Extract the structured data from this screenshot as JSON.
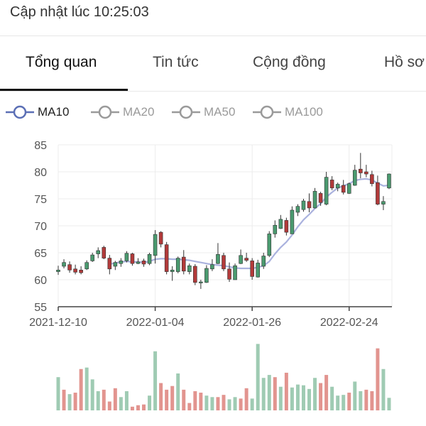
{
  "header": {
    "update_text": "Cập nhật lúc 10:25:03"
  },
  "tabs": [
    {
      "label": "Tổng quan"
    },
    {
      "label": "Tin tức"
    },
    {
      "label": "Cộng đồng"
    },
    {
      "label": "Hồ sơ"
    }
  ],
  "ma_legend": [
    {
      "label": "MA10",
      "active": true,
      "color": "#5b6fb5"
    },
    {
      "label": "MA20",
      "active": false,
      "color": "#9a9a9a"
    },
    {
      "label": "MA50",
      "active": false,
      "color": "#9a9a9a"
    },
    {
      "label": "MA100",
      "active": false,
      "color": "#9a9a9a"
    }
  ],
  "colors": {
    "up": "#4a9a6f",
    "down": "#b23a3a",
    "volume_up": "#9fcbb3",
    "volume_down": "#e2948f",
    "ma10": "#aab2de"
  },
  "chart_data": {
    "type": "candlestick",
    "ylim": [
      55,
      85
    ],
    "y_ticks": [
      "85",
      "80",
      "75",
      "70",
      "65",
      "60",
      "55"
    ],
    "x_ticks": [
      {
        "label": "2021-12-10",
        "index": 0
      },
      {
        "label": "2022-01-04",
        "index": 17
      },
      {
        "label": "2022-01-26",
        "index": 34
      },
      {
        "label": "2022-02-24",
        "index": 51
      }
    ],
    "candles": [
      [
        61.5,
        62.6,
        60.9,
        61.8
      ],
      [
        62.5,
        63.8,
        62.1,
        63.2
      ],
      [
        62.8,
        63.4,
        61.3,
        61.8
      ],
      [
        62.0,
        62.8,
        61.0,
        61.4
      ],
      [
        61.8,
        62.5,
        61.0,
        61.3
      ],
      [
        62.0,
        63.6,
        61.8,
        63.2
      ],
      [
        63.5,
        65.0,
        63.3,
        64.6
      ],
      [
        64.8,
        66.0,
        64.0,
        65.4
      ],
      [
        66.0,
        66.3,
        63.8,
        64.0
      ],
      [
        64.0,
        64.6,
        61.0,
        62.0
      ],
      [
        62.5,
        63.5,
        61.8,
        63.2
      ],
      [
        63.0,
        64.0,
        62.4,
        63.5
      ],
      [
        63.5,
        65.3,
        63.2,
        64.9
      ],
      [
        64.8,
        65.0,
        62.6,
        63.0
      ],
      [
        63.0,
        64.0,
        62.9,
        63.3
      ],
      [
        63.5,
        63.9,
        62.4,
        62.9
      ],
      [
        63.0,
        65.0,
        62.7,
        64.7
      ],
      [
        64.5,
        69.2,
        63.0,
        68.4
      ],
      [
        68.8,
        69.0,
        66.0,
        66.6
      ],
      [
        66.5,
        67.0,
        61.0,
        61.5
      ],
      [
        61.5,
        62.5,
        59.8,
        61.8
      ],
      [
        61.5,
        64.3,
        61.2,
        64.0
      ],
      [
        64.2,
        65.5,
        61.0,
        61.6
      ],
      [
        61.5,
        63.0,
        61.0,
        62.6
      ],
      [
        62.5,
        62.9,
        59.0,
        59.5
      ],
      [
        59.5,
        60.0,
        58.3,
        59.6
      ],
      [
        59.5,
        62.7,
        59.4,
        62.1
      ],
      [
        62.0,
        63.8,
        61.6,
        62.8
      ],
      [
        63.0,
        66.8,
        62.9,
        64.7
      ],
      [
        64.5,
        65.0,
        61.6,
        62.0
      ],
      [
        62.0,
        63.2,
        59.6,
        60.1
      ],
      [
        60.0,
        63.0,
        60.0,
        62.6
      ],
      [
        63.0,
        65.6,
        62.9,
        64.5
      ],
      [
        64.0,
        65.0,
        63.3,
        63.6
      ],
      [
        63.5,
        64.0,
        60.0,
        60.6
      ],
      [
        60.5,
        63.7,
        60.4,
        63.1
      ],
      [
        62.5,
        65.0,
        62.0,
        64.4
      ],
      [
        64.5,
        69.0,
        64.2,
        68.5
      ],
      [
        68.5,
        71.0,
        67.8,
        70.1
      ],
      [
        69.5,
        72.0,
        69.4,
        71.2
      ],
      [
        71.0,
        71.5,
        68.2,
        68.8
      ],
      [
        68.5,
        73.6,
        68.5,
        72.9
      ],
      [
        72.5,
        74.0,
        71.8,
        73.6
      ],
      [
        73.0,
        75.0,
        72.6,
        74.6
      ],
      [
        74.5,
        76.0,
        72.5,
        73.3
      ],
      [
        73.3,
        77.0,
        73.2,
        76.4
      ],
      [
        76.0,
        76.3,
        73.7,
        74.3
      ],
      [
        74.0,
        80.0,
        73.8,
        79.0
      ],
      [
        78.5,
        79.2,
        76.6,
        77.0
      ],
      [
        77.0,
        78.0,
        76.4,
        77.7
      ],
      [
        77.5,
        78.5,
        75.8,
        76.2
      ],
      [
        76.0,
        78.0,
        75.9,
        77.8
      ],
      [
        77.5,
        81.3,
        77.4,
        80.3
      ],
      [
        80.5,
        83.5,
        78.8,
        79.8
      ],
      [
        80.0,
        81.3,
        79.0,
        79.6
      ],
      [
        79.5,
        80.2,
        77.3,
        77.8
      ],
      [
        78.0,
        79.3,
        73.8,
        74.0
      ],
      [
        74.0,
        75.5,
        72.9,
        74.5
      ],
      [
        77.0,
        79.7,
        76.8,
        79.6
      ]
    ],
    "ma10": [
      null,
      null,
      null,
      null,
      null,
      null,
      null,
      null,
      null,
      62.9,
      63.1,
      63.3,
      63.4,
      63.3,
      63.3,
      63.2,
      63.4,
      63.8,
      63.9,
      63.9,
      63.8,
      63.8,
      63.7,
      63.6,
      63.4,
      63.2,
      63.0,
      62.8,
      62.7,
      62.6,
      62.4,
      62.2,
      62.1,
      62.1,
      62.1,
      62.3,
      62.6,
      63.4,
      64.8,
      66.0,
      67.0,
      68.3,
      69.8,
      71.1,
      72.1,
      73.2,
      74.1,
      75.3,
      76.2,
      77.0,
      77.4,
      77.8,
      78.4,
      78.6,
      78.7,
      78.5,
      77.9,
      77.4,
      77.5
    ],
    "volume": [
      [
        0.45,
        "up"
      ],
      [
        0.28,
        "down"
      ],
      [
        0.22,
        "up"
      ],
      [
        0.24,
        "down"
      ],
      [
        0.56,
        "down"
      ],
      [
        0.58,
        "up"
      ],
      [
        0.42,
        "up"
      ],
      [
        0.26,
        "up"
      ],
      [
        0.28,
        "down"
      ],
      [
        0.12,
        "down"
      ],
      [
        0.3,
        "down"
      ],
      [
        0.18,
        "up"
      ],
      [
        0.26,
        "up"
      ],
      [
        0.05,
        "down"
      ],
      [
        0.07,
        "down"
      ],
      [
        0.08,
        "down"
      ],
      [
        0.2,
        "up"
      ],
      [
        0.8,
        "up"
      ],
      [
        0.37,
        "down"
      ],
      [
        0.28,
        "down"
      ],
      [
        0.33,
        "down"
      ],
      [
        0.5,
        "up"
      ],
      [
        0.28,
        "down"
      ],
      [
        0.1,
        "down"
      ],
      [
        0.26,
        "down"
      ],
      [
        0.24,
        "down"
      ],
      [
        0.2,
        "up"
      ],
      [
        0.18,
        "up"
      ],
      [
        0.18,
        "down"
      ],
      [
        0.21,
        "down"
      ],
      [
        0.15,
        "up"
      ],
      [
        0.18,
        "up"
      ],
      [
        0.16,
        "down"
      ],
      [
        0.3,
        "down"
      ],
      [
        0.16,
        "up"
      ],
      [
        0.9,
        "up"
      ],
      [
        0.44,
        "up"
      ],
      [
        0.48,
        "up"
      ],
      [
        0.45,
        "down"
      ],
      [
        0.32,
        "up"
      ],
      [
        0.51,
        "down"
      ],
      [
        0.31,
        "up"
      ],
      [
        0.35,
        "up"
      ],
      [
        0.34,
        "up"
      ],
      [
        0.29,
        "up"
      ],
      [
        0.44,
        "up"
      ],
      [
        0.37,
        "down"
      ],
      [
        0.48,
        "down"
      ],
      [
        0.32,
        "up"
      ],
      [
        0.2,
        "up"
      ],
      [
        0.21,
        "up"
      ],
      [
        0.24,
        "down"
      ],
      [
        0.39,
        "up"
      ],
      [
        0.26,
        "up"
      ],
      [
        0.28,
        "down"
      ],
      [
        0.26,
        "down"
      ],
      [
        0.84,
        "down"
      ],
      [
        0.56,
        "up"
      ],
      [
        0.17,
        "up"
      ]
    ]
  }
}
